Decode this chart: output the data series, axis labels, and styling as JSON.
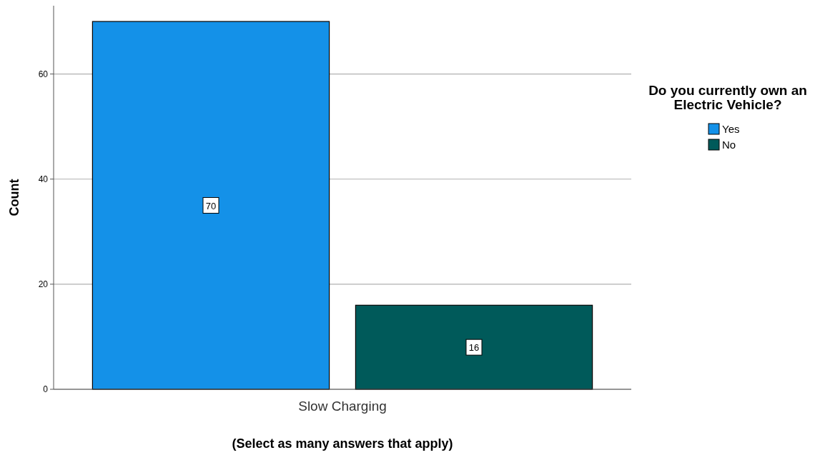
{
  "chart_data": {
    "type": "bar",
    "categories": [
      "Slow Charging"
    ],
    "series": [
      {
        "name": "Yes",
        "color": "#1491e8",
        "values": [
          70
        ]
      },
      {
        "name": "No",
        "color": "#005a5a",
        "values": [
          16
        ]
      }
    ],
    "xlabel": "(Select as many answers that apply)",
    "ylabel": "Count",
    "legend_title": "Do you currently own an Electric Vehicle?",
    "ylim": [
      0,
      73
    ],
    "yticks": [
      0,
      20,
      40,
      60
    ],
    "grid": "y",
    "legend": "right",
    "data_labels": true
  }
}
